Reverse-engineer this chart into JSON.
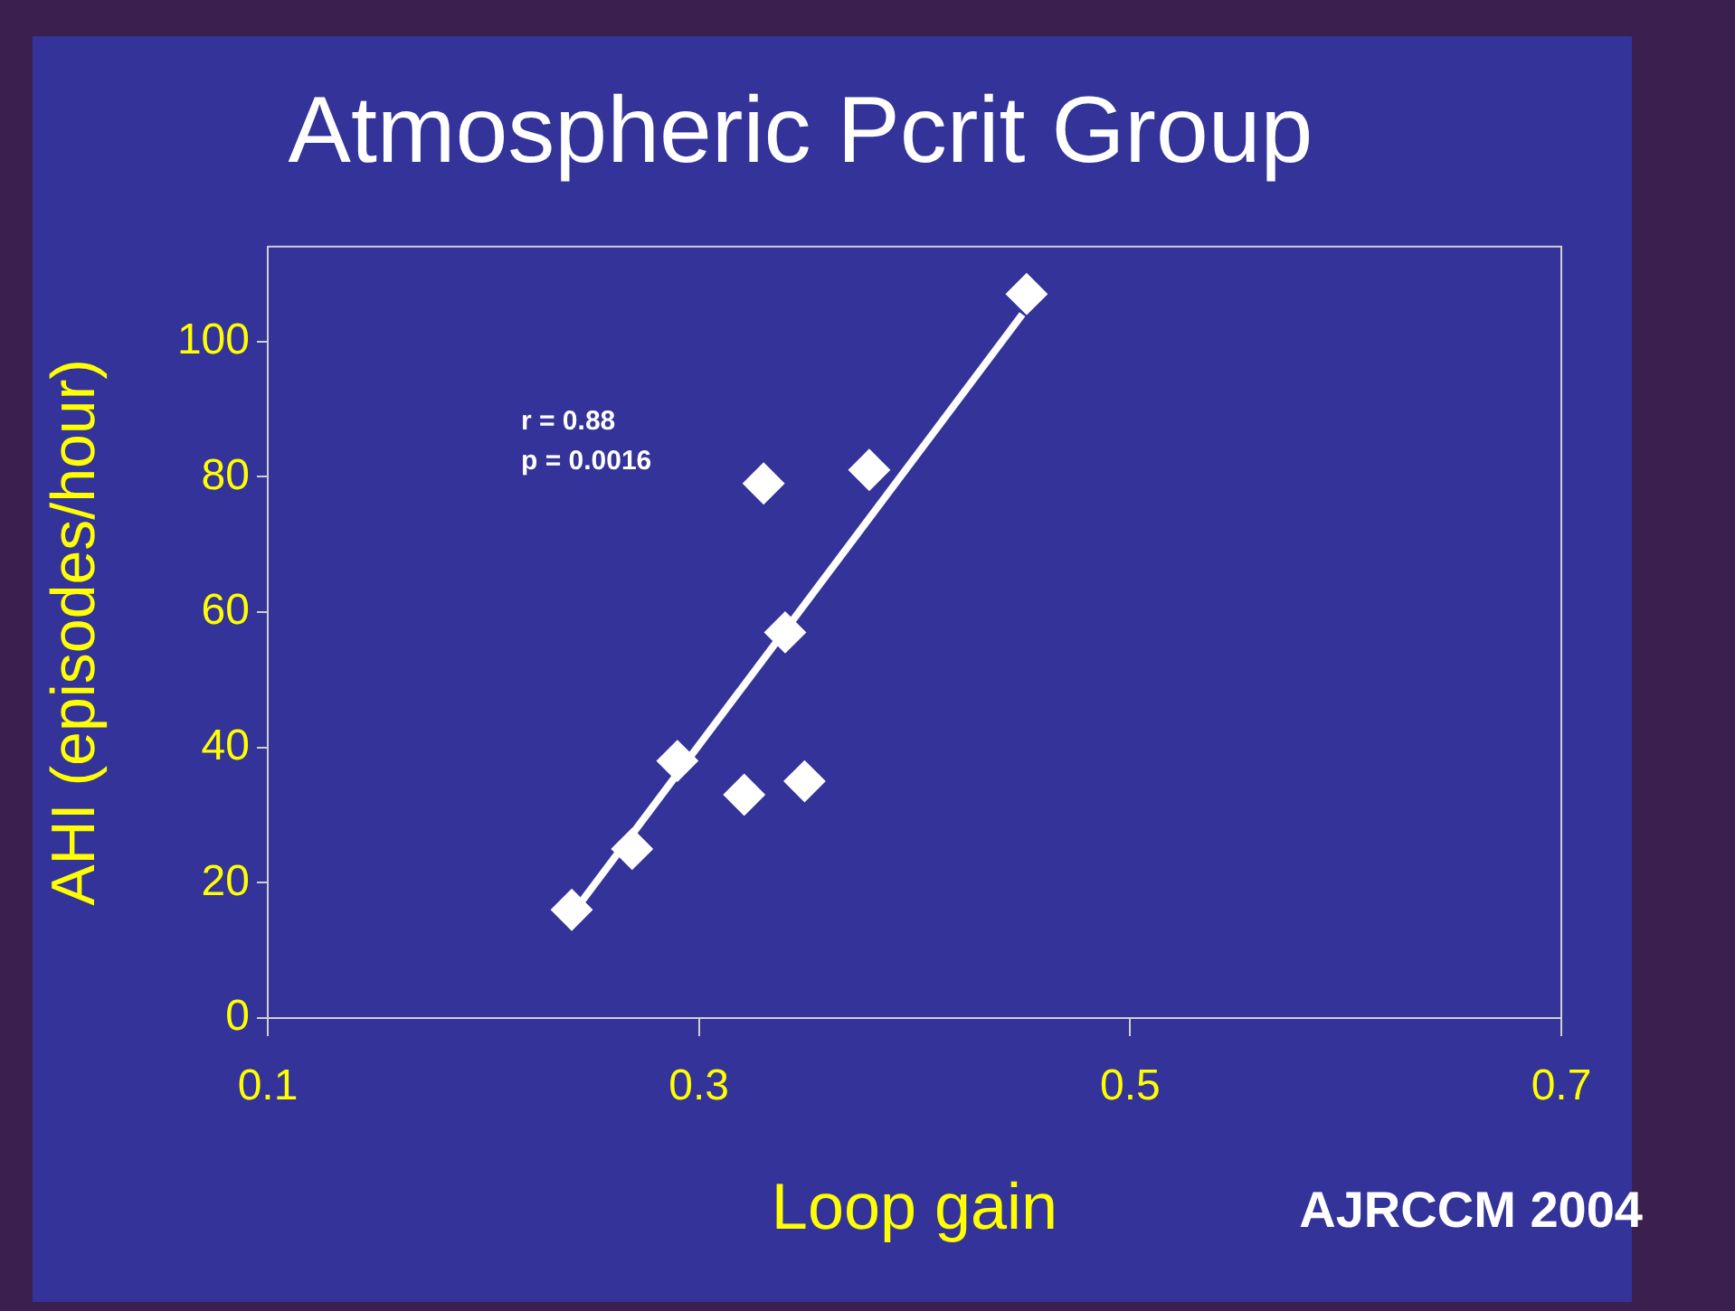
{
  "chart_data": {
    "type": "scatter",
    "title": "Atmospheric Pcrit Group",
    "xlabel": "Loop gain",
    "ylabel": "AHI (episodes/hour)",
    "annotations": [
      "r = 0.88",
      "p = 0.0016",
      "AJRCCM 2004"
    ],
    "series": [
      {
        "color": "#ffffff",
        "marker": "diamond",
        "x": [
          0.241,
          0.269,
          0.29,
          0.321,
          0.33,
          0.34,
          0.349,
          0.379,
          0.452
        ],
        "values": [
          16,
          25,
          38,
          33,
          79,
          57,
          35,
          81,
          107
        ]
      },
      {
        "type": "line",
        "color": "#ffffff",
        "marker": "none",
        "line_style": "solid",
        "x": [
          0.238,
          0.45
        ],
        "values": [
          14,
          104
        ]
      }
    ],
    "xlim": [
      0.1,
      0.7
    ],
    "xticks": [
      0.1,
      0.3,
      0.5,
      0.7
    ],
    "ylim": [
      0,
      114
    ],
    "yticks": [
      0,
      20,
      40,
      60,
      80,
      100
    ],
    "grid": false,
    "legend": false
  }
}
